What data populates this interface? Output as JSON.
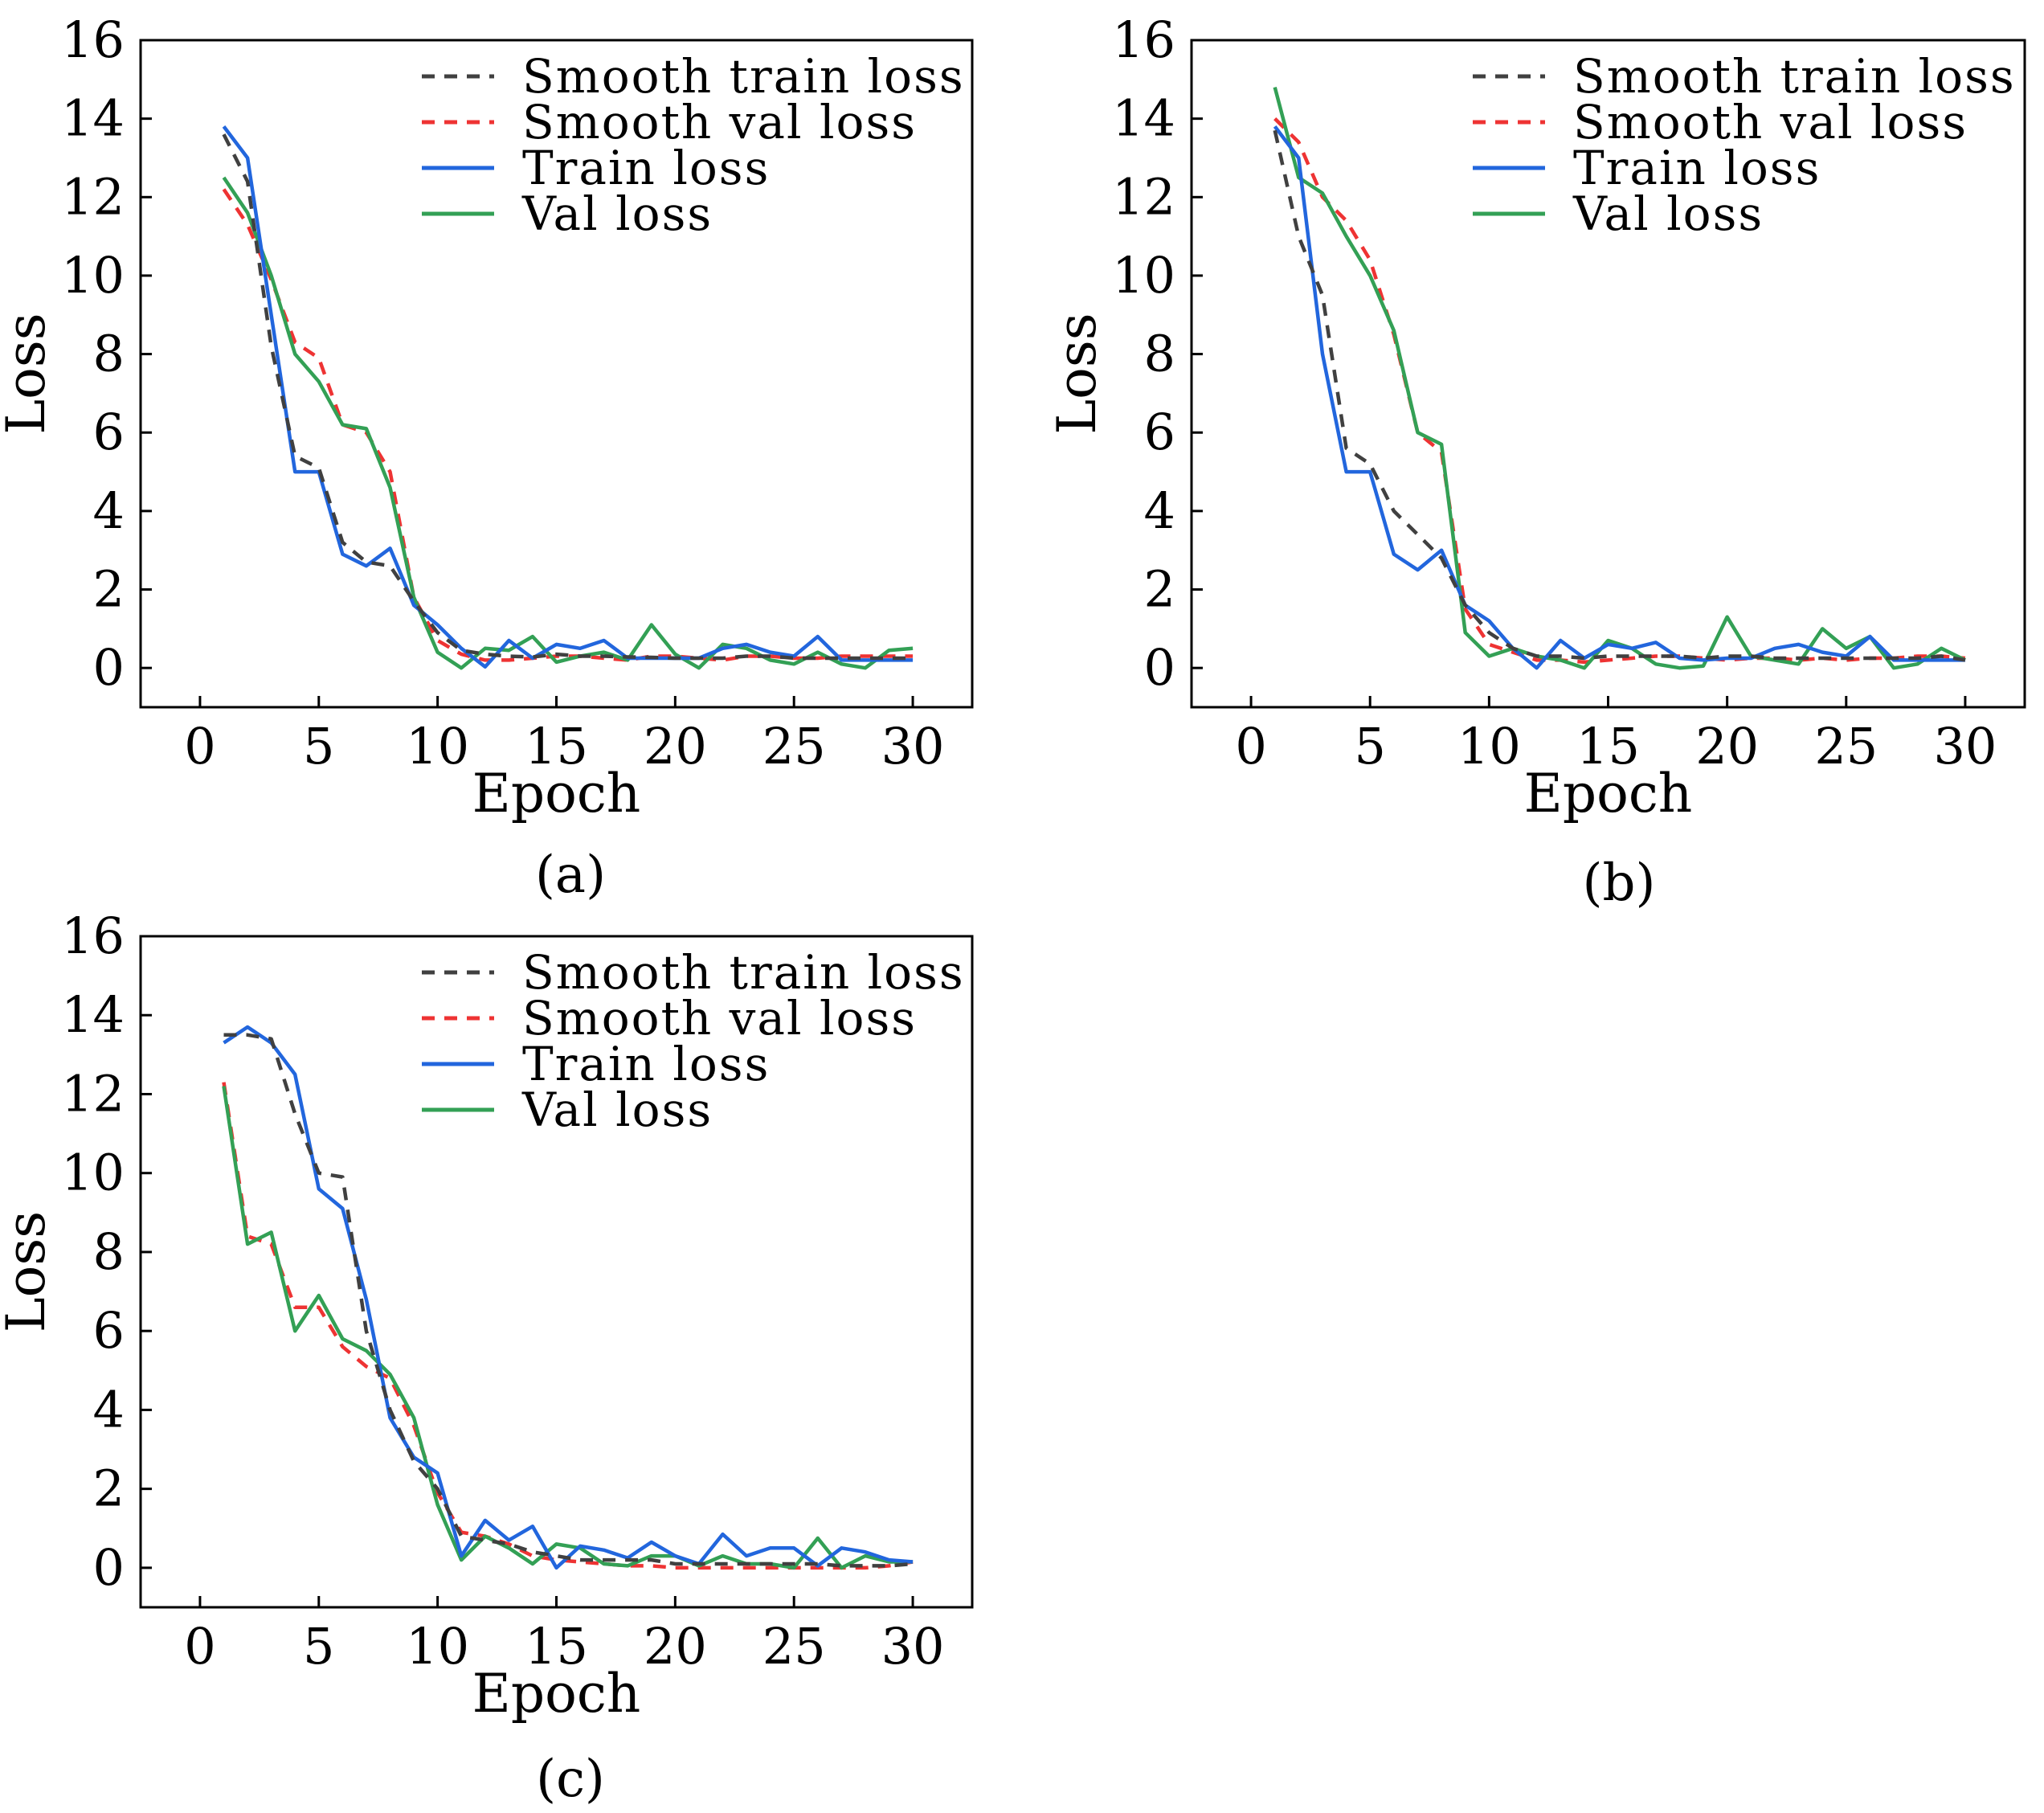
{
  "figure": {
    "colors": {
      "smooth_train": "#404040",
      "smooth_val": "#ee3333",
      "train": "#2266dd",
      "val": "#33a055"
    }
  },
  "chart_data": [
    {
      "type": "line",
      "caption": "(a)",
      "xlabel": "Epoch",
      "ylabel": "Loss",
      "xlim": [
        -2.5,
        32.5
      ],
      "ylim": [
        -1,
        16
      ],
      "xticks": [
        0,
        5,
        10,
        15,
        20,
        25,
        30
      ],
      "yticks": [
        0,
        2,
        4,
        6,
        8,
        10,
        12,
        14,
        16
      ],
      "legend_position": "top-right",
      "series": [
        {
          "key": "smooth_train",
          "name": "Smooth train loss",
          "style": "dashed",
          "x": [
            1,
            2,
            3,
            4,
            5,
            6,
            7,
            8,
            9,
            10,
            11,
            12,
            13,
            14,
            15,
            16,
            17,
            18,
            19,
            20,
            21,
            22,
            23,
            24,
            25,
            26,
            27,
            28,
            29,
            30
          ],
          "values": [
            13.6,
            12.4,
            8.2,
            5.4,
            5.1,
            3.2,
            2.7,
            2.6,
            1.7,
            0.9,
            0.45,
            0.35,
            0.3,
            0.28,
            0.35,
            0.3,
            0.3,
            0.28,
            0.27,
            0.25,
            0.25,
            0.25,
            0.3,
            0.3,
            0.25,
            0.25,
            0.25,
            0.25,
            0.25,
            0.25
          ]
        },
        {
          "key": "smooth_val",
          "name": "Smooth val loss",
          "style": "dashed",
          "x": [
            1,
            2,
            3,
            4,
            5,
            6,
            7,
            8,
            9,
            10,
            11,
            12,
            13,
            14,
            15,
            16,
            17,
            18,
            19,
            20,
            21,
            22,
            23,
            24,
            25,
            26,
            27,
            28,
            29,
            30
          ],
          "values": [
            12.2,
            11.3,
            9.9,
            8.3,
            7.9,
            6.2,
            6.0,
            5.0,
            1.8,
            0.7,
            0.35,
            0.2,
            0.2,
            0.25,
            0.3,
            0.3,
            0.25,
            0.2,
            0.3,
            0.3,
            0.25,
            0.2,
            0.3,
            0.3,
            0.25,
            0.25,
            0.3,
            0.3,
            0.3,
            0.3
          ]
        },
        {
          "key": "train",
          "name": "Train loss",
          "style": "solid",
          "x": [
            1,
            2,
            3,
            4,
            5,
            6,
            7,
            8,
            9,
            10,
            11,
            12,
            13,
            14,
            15,
            16,
            17,
            18,
            19,
            20,
            21,
            22,
            23,
            24,
            25,
            26,
            27,
            28,
            29,
            30
          ],
          "values": [
            13.8,
            13.0,
            9.0,
            5.0,
            5.0,
            2.9,
            2.6,
            3.05,
            1.6,
            1.1,
            0.5,
            0.03,
            0.7,
            0.25,
            0.6,
            0.5,
            0.7,
            0.25,
            0.25,
            0.25,
            0.25,
            0.5,
            0.6,
            0.4,
            0.3,
            0.8,
            0.2,
            0.2,
            0.2,
            0.2
          ]
        },
        {
          "key": "val",
          "name": "Val loss",
          "style": "solid",
          "x": [
            1,
            2,
            3,
            4,
            5,
            6,
            7,
            8,
            9,
            10,
            11,
            12,
            13,
            14,
            15,
            16,
            17,
            18,
            19,
            20,
            21,
            22,
            23,
            24,
            25,
            26,
            27,
            28,
            29,
            30
          ],
          "values": [
            12.5,
            11.6,
            10.0,
            8.0,
            7.3,
            6.2,
            6.1,
            4.6,
            1.8,
            0.4,
            0.0,
            0.5,
            0.45,
            0.8,
            0.15,
            0.3,
            0.4,
            0.2,
            1.1,
            0.35,
            0.0,
            0.6,
            0.5,
            0.2,
            0.1,
            0.4,
            0.1,
            0.0,
            0.45,
            0.5
          ]
        }
      ]
    },
    {
      "type": "line",
      "caption": "(b)",
      "xlabel": "Epoch",
      "ylabel": "Loss",
      "xlim": [
        -2.5,
        32.5
      ],
      "ylim": [
        -1,
        16
      ],
      "xticks": [
        0,
        5,
        10,
        15,
        20,
        25,
        30
      ],
      "yticks": [
        0,
        2,
        4,
        6,
        8,
        10,
        12,
        14,
        16
      ],
      "legend_position": "top-right",
      "series": [
        {
          "key": "smooth_train",
          "name": "Smooth train loss",
          "style": "dashed",
          "x": [
            1,
            2,
            3,
            4,
            5,
            6,
            7,
            8,
            9,
            10,
            11,
            12,
            13,
            14,
            15,
            16,
            17,
            18,
            19,
            20,
            21,
            22,
            23,
            24,
            25,
            26,
            27,
            28,
            29,
            30
          ],
          "values": [
            13.7,
            11.0,
            9.5,
            5.6,
            5.2,
            4.0,
            3.4,
            2.8,
            1.6,
            0.9,
            0.5,
            0.3,
            0.3,
            0.25,
            0.3,
            0.3,
            0.3,
            0.3,
            0.25,
            0.3,
            0.3,
            0.25,
            0.25,
            0.25,
            0.25,
            0.25,
            0.25,
            0.25,
            0.3,
            0.2
          ]
        },
        {
          "key": "smooth_val",
          "name": "Smooth val loss",
          "style": "dashed",
          "x": [
            1,
            2,
            3,
            4,
            5,
            6,
            7,
            8,
            9,
            10,
            11,
            12,
            13,
            14,
            15,
            16,
            17,
            18,
            19,
            20,
            21,
            22,
            23,
            24,
            25,
            26,
            27,
            28,
            29,
            30
          ],
          "values": [
            14.0,
            13.4,
            12.0,
            11.4,
            10.4,
            8.5,
            6.0,
            5.5,
            1.5,
            0.6,
            0.4,
            0.2,
            0.2,
            0.15,
            0.2,
            0.25,
            0.3,
            0.3,
            0.25,
            0.2,
            0.25,
            0.25,
            0.2,
            0.25,
            0.2,
            0.25,
            0.25,
            0.3,
            0.3,
            0.25
          ]
        },
        {
          "key": "train",
          "name": "Train loss",
          "style": "solid",
          "x": [
            1,
            2,
            3,
            4,
            5,
            6,
            7,
            8,
            9,
            10,
            11,
            12,
            13,
            14,
            15,
            16,
            17,
            18,
            19,
            20,
            21,
            22,
            23,
            24,
            25,
            26,
            27,
            28,
            29,
            30
          ],
          "values": [
            13.8,
            13.0,
            8.0,
            5.0,
            5.0,
            2.9,
            2.5,
            3.0,
            1.6,
            1.2,
            0.5,
            0.0,
            0.7,
            0.25,
            0.6,
            0.5,
            0.65,
            0.25,
            0.2,
            0.25,
            0.25,
            0.5,
            0.6,
            0.4,
            0.3,
            0.8,
            0.2,
            0.2,
            0.2,
            0.2
          ]
        },
        {
          "key": "val",
          "name": "Val loss",
          "style": "solid",
          "x": [
            1,
            2,
            3,
            4,
            5,
            6,
            7,
            8,
            9,
            10,
            11,
            12,
            13,
            14,
            15,
            16,
            17,
            18,
            19,
            20,
            21,
            22,
            23,
            24,
            25,
            26,
            27,
            28,
            29,
            30
          ],
          "values": [
            14.8,
            12.5,
            12.1,
            11.0,
            10.0,
            8.6,
            6.0,
            5.7,
            0.9,
            0.3,
            0.5,
            0.3,
            0.2,
            0.0,
            0.7,
            0.5,
            0.1,
            0.0,
            0.05,
            1.3,
            0.3,
            0.2,
            0.1,
            1.0,
            0.5,
            0.8,
            0.0,
            0.1,
            0.5,
            0.2
          ]
        }
      ]
    },
    {
      "type": "line",
      "caption": "(c)",
      "xlabel": "Epoch",
      "ylabel": "Loss",
      "xlim": [
        -2.5,
        32.5
      ],
      "ylim": [
        -1,
        16
      ],
      "xticks": [
        0,
        5,
        10,
        15,
        20,
        25,
        30
      ],
      "yticks": [
        0,
        2,
        4,
        6,
        8,
        10,
        12,
        14,
        16
      ],
      "legend_position": "top-right",
      "series": [
        {
          "key": "smooth_train",
          "name": "Smooth train loss",
          "style": "dashed",
          "x": [
            1,
            2,
            3,
            4,
            5,
            6,
            7,
            8,
            9,
            10,
            11,
            12,
            13,
            14,
            15,
            16,
            17,
            18,
            19,
            20,
            21,
            22,
            23,
            24,
            25,
            26,
            27,
            28,
            29,
            30
          ],
          "values": [
            13.5,
            13.5,
            13.4,
            11.5,
            10.0,
            9.9,
            6.0,
            4.0,
            2.7,
            2.0,
            0.8,
            0.7,
            0.6,
            0.4,
            0.3,
            0.2,
            0.2,
            0.2,
            0.2,
            0.1,
            0.1,
            0.1,
            0.1,
            0.1,
            0.1,
            0.1,
            0.05,
            0.05,
            0.05,
            0.1
          ]
        },
        {
          "key": "smooth_val",
          "name": "Smooth val loss",
          "style": "dashed",
          "x": [
            1,
            2,
            3,
            4,
            5,
            6,
            7,
            8,
            9,
            10,
            11,
            12,
            13,
            14,
            15,
            16,
            17,
            18,
            19,
            20,
            21,
            22,
            23,
            24,
            25,
            26,
            27,
            28,
            29,
            30
          ],
          "values": [
            12.3,
            8.4,
            8.2,
            6.6,
            6.6,
            5.6,
            5.1,
            4.8,
            3.6,
            1.9,
            0.9,
            0.8,
            0.6,
            0.3,
            0.2,
            0.15,
            0.1,
            0.05,
            0.05,
            0.0,
            0.0,
            0.0,
            0.0,
            0.0,
            0.0,
            0.0,
            0.0,
            0.0,
            0.05,
            0.15
          ]
        },
        {
          "key": "train",
          "name": "Train loss",
          "style": "solid",
          "x": [
            1,
            2,
            3,
            4,
            5,
            6,
            7,
            8,
            9,
            10,
            11,
            12,
            13,
            14,
            15,
            16,
            17,
            18,
            19,
            20,
            21,
            22,
            23,
            24,
            25,
            26,
            27,
            28,
            29,
            30
          ],
          "values": [
            13.3,
            13.7,
            13.3,
            12.5,
            9.6,
            9.1,
            6.8,
            3.8,
            2.8,
            2.4,
            0.3,
            1.2,
            0.7,
            1.05,
            0.0,
            0.55,
            0.45,
            0.25,
            0.65,
            0.3,
            0.1,
            0.85,
            0.3,
            0.5,
            0.5,
            0.05,
            0.5,
            0.4,
            0.2,
            0.15
          ]
        },
        {
          "key": "val",
          "name": "Val loss",
          "style": "solid",
          "x": [
            1,
            2,
            3,
            4,
            5,
            6,
            7,
            8,
            9,
            10,
            11,
            12,
            13,
            14,
            15,
            16,
            17,
            18,
            19,
            20,
            21,
            22,
            23,
            24,
            25,
            26,
            27,
            28,
            29,
            30
          ],
          "values": [
            12.2,
            8.2,
            8.5,
            6.0,
            6.9,
            5.8,
            5.5,
            4.9,
            3.8,
            1.6,
            0.2,
            0.8,
            0.5,
            0.1,
            0.6,
            0.5,
            0.1,
            0.05,
            0.3,
            0.3,
            0.05,
            0.3,
            0.1,
            0.1,
            0.0,
            0.75,
            0.0,
            0.3,
            0.15,
            0.15
          ]
        }
      ]
    }
  ]
}
